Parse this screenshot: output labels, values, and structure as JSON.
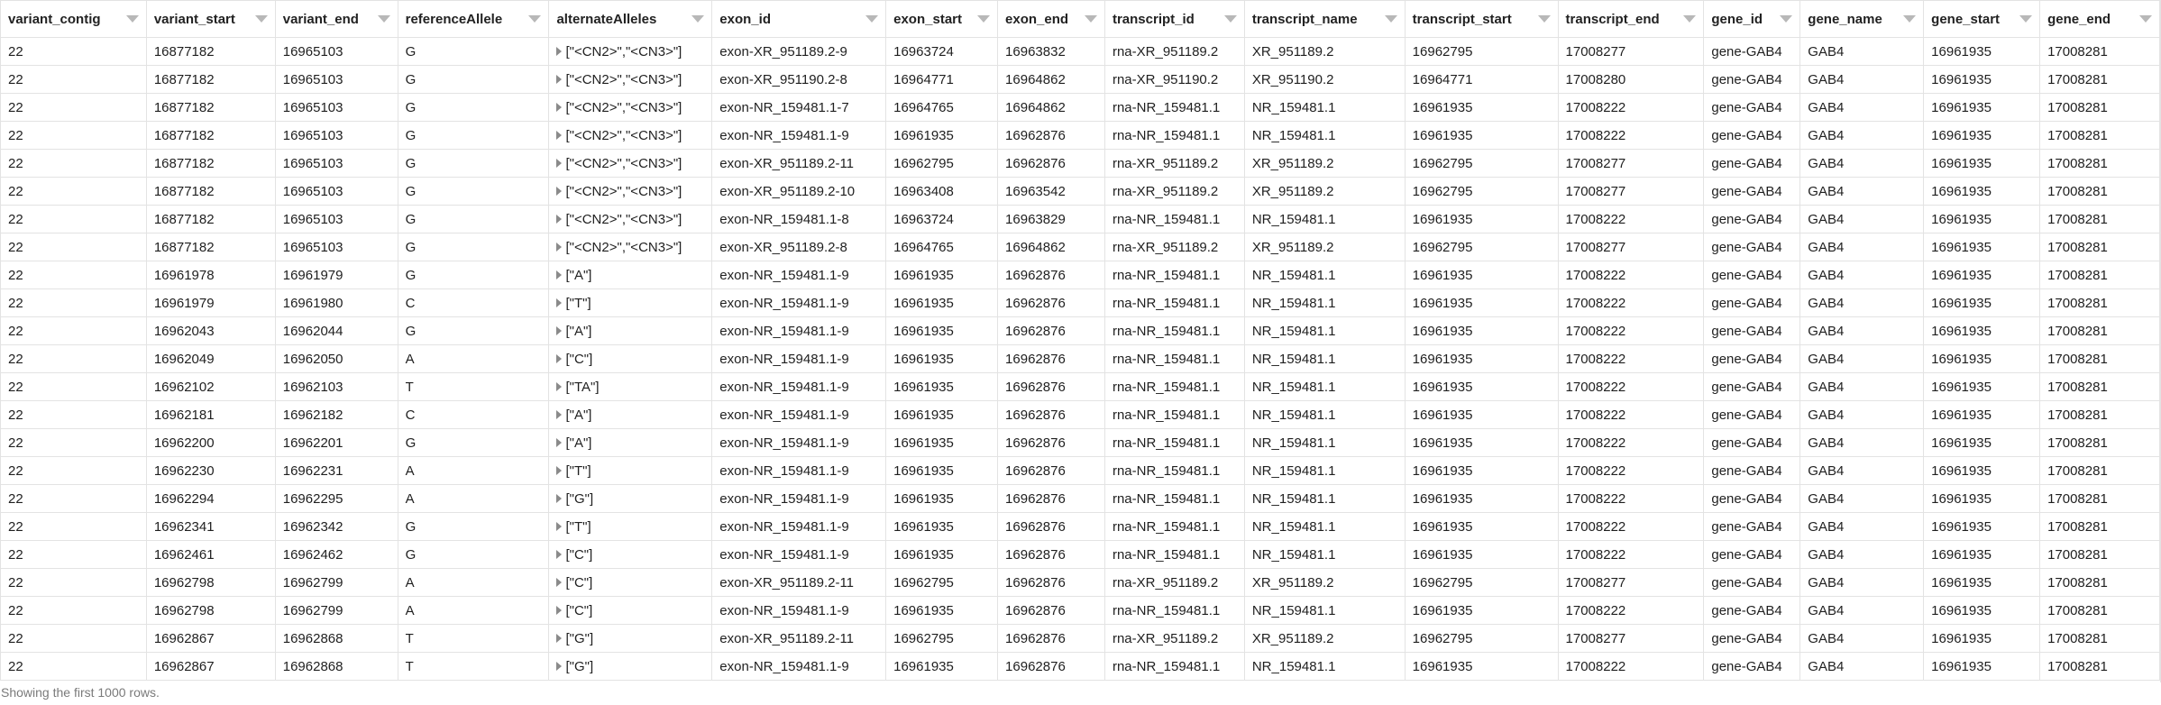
{
  "columns": [
    "variant_contig",
    "variant_start",
    "variant_end",
    "referenceAllele",
    "alternateAlleles",
    "exon_id",
    "exon_start",
    "exon_end",
    "transcript_id",
    "transcript_name",
    "transcript_start",
    "transcript_end",
    "gene_id",
    "gene_name",
    "gene_start",
    "gene_end"
  ],
  "rows": [
    [
      "22",
      "16877182",
      "16965103",
      "G",
      "[\"<CN2>\",\"<CN3>\"]",
      "exon-XR_951189.2-9",
      "16963724",
      "16963832",
      "rna-XR_951189.2",
      "XR_951189.2",
      "16962795",
      "17008277",
      "gene-GAB4",
      "GAB4",
      "16961935",
      "17008281"
    ],
    [
      "22",
      "16877182",
      "16965103",
      "G",
      "[\"<CN2>\",\"<CN3>\"]",
      "exon-XR_951190.2-8",
      "16964771",
      "16964862",
      "rna-XR_951190.2",
      "XR_951190.2",
      "16964771",
      "17008280",
      "gene-GAB4",
      "GAB4",
      "16961935",
      "17008281"
    ],
    [
      "22",
      "16877182",
      "16965103",
      "G",
      "[\"<CN2>\",\"<CN3>\"]",
      "exon-NR_159481.1-7",
      "16964765",
      "16964862",
      "rna-NR_159481.1",
      "NR_159481.1",
      "16961935",
      "17008222",
      "gene-GAB4",
      "GAB4",
      "16961935",
      "17008281"
    ],
    [
      "22",
      "16877182",
      "16965103",
      "G",
      "[\"<CN2>\",\"<CN3>\"]",
      "exon-NR_159481.1-9",
      "16961935",
      "16962876",
      "rna-NR_159481.1",
      "NR_159481.1",
      "16961935",
      "17008222",
      "gene-GAB4",
      "GAB4",
      "16961935",
      "17008281"
    ],
    [
      "22",
      "16877182",
      "16965103",
      "G",
      "[\"<CN2>\",\"<CN3>\"]",
      "exon-XR_951189.2-11",
      "16962795",
      "16962876",
      "rna-XR_951189.2",
      "XR_951189.2",
      "16962795",
      "17008277",
      "gene-GAB4",
      "GAB4",
      "16961935",
      "17008281"
    ],
    [
      "22",
      "16877182",
      "16965103",
      "G",
      "[\"<CN2>\",\"<CN3>\"]",
      "exon-XR_951189.2-10",
      "16963408",
      "16963542",
      "rna-XR_951189.2",
      "XR_951189.2",
      "16962795",
      "17008277",
      "gene-GAB4",
      "GAB4",
      "16961935",
      "17008281"
    ],
    [
      "22",
      "16877182",
      "16965103",
      "G",
      "[\"<CN2>\",\"<CN3>\"]",
      "exon-NR_159481.1-8",
      "16963724",
      "16963829",
      "rna-NR_159481.1",
      "NR_159481.1",
      "16961935",
      "17008222",
      "gene-GAB4",
      "GAB4",
      "16961935",
      "17008281"
    ],
    [
      "22",
      "16877182",
      "16965103",
      "G",
      "[\"<CN2>\",\"<CN3>\"]",
      "exon-XR_951189.2-8",
      "16964765",
      "16964862",
      "rna-XR_951189.2",
      "XR_951189.2",
      "16962795",
      "17008277",
      "gene-GAB4",
      "GAB4",
      "16961935",
      "17008281"
    ],
    [
      "22",
      "16961978",
      "16961979",
      "G",
      "[\"A\"]",
      "exon-NR_159481.1-9",
      "16961935",
      "16962876",
      "rna-NR_159481.1",
      "NR_159481.1",
      "16961935",
      "17008222",
      "gene-GAB4",
      "GAB4",
      "16961935",
      "17008281"
    ],
    [
      "22",
      "16961979",
      "16961980",
      "C",
      "[\"T\"]",
      "exon-NR_159481.1-9",
      "16961935",
      "16962876",
      "rna-NR_159481.1",
      "NR_159481.1",
      "16961935",
      "17008222",
      "gene-GAB4",
      "GAB4",
      "16961935",
      "17008281"
    ],
    [
      "22",
      "16962043",
      "16962044",
      "G",
      "[\"A\"]",
      "exon-NR_159481.1-9",
      "16961935",
      "16962876",
      "rna-NR_159481.1",
      "NR_159481.1",
      "16961935",
      "17008222",
      "gene-GAB4",
      "GAB4",
      "16961935",
      "17008281"
    ],
    [
      "22",
      "16962049",
      "16962050",
      "A",
      "[\"C\"]",
      "exon-NR_159481.1-9",
      "16961935",
      "16962876",
      "rna-NR_159481.1",
      "NR_159481.1",
      "16961935",
      "17008222",
      "gene-GAB4",
      "GAB4",
      "16961935",
      "17008281"
    ],
    [
      "22",
      "16962102",
      "16962103",
      "T",
      "[\"TA\"]",
      "exon-NR_159481.1-9",
      "16961935",
      "16962876",
      "rna-NR_159481.1",
      "NR_159481.1",
      "16961935",
      "17008222",
      "gene-GAB4",
      "GAB4",
      "16961935",
      "17008281"
    ],
    [
      "22",
      "16962181",
      "16962182",
      "C",
      "[\"A\"]",
      "exon-NR_159481.1-9",
      "16961935",
      "16962876",
      "rna-NR_159481.1",
      "NR_159481.1",
      "16961935",
      "17008222",
      "gene-GAB4",
      "GAB4",
      "16961935",
      "17008281"
    ],
    [
      "22",
      "16962200",
      "16962201",
      "G",
      "[\"A\"]",
      "exon-NR_159481.1-9",
      "16961935",
      "16962876",
      "rna-NR_159481.1",
      "NR_159481.1",
      "16961935",
      "17008222",
      "gene-GAB4",
      "GAB4",
      "16961935",
      "17008281"
    ],
    [
      "22",
      "16962230",
      "16962231",
      "A",
      "[\"T\"]",
      "exon-NR_159481.1-9",
      "16961935",
      "16962876",
      "rna-NR_159481.1",
      "NR_159481.1",
      "16961935",
      "17008222",
      "gene-GAB4",
      "GAB4",
      "16961935",
      "17008281"
    ],
    [
      "22",
      "16962294",
      "16962295",
      "A",
      "[\"G\"]",
      "exon-NR_159481.1-9",
      "16961935",
      "16962876",
      "rna-NR_159481.1",
      "NR_159481.1",
      "16961935",
      "17008222",
      "gene-GAB4",
      "GAB4",
      "16961935",
      "17008281"
    ],
    [
      "22",
      "16962341",
      "16962342",
      "G",
      "[\"T\"]",
      "exon-NR_159481.1-9",
      "16961935",
      "16962876",
      "rna-NR_159481.1",
      "NR_159481.1",
      "16961935",
      "17008222",
      "gene-GAB4",
      "GAB4",
      "16961935",
      "17008281"
    ],
    [
      "22",
      "16962461",
      "16962462",
      "G",
      "[\"C\"]",
      "exon-NR_159481.1-9",
      "16961935",
      "16962876",
      "rna-NR_159481.1",
      "NR_159481.1",
      "16961935",
      "17008222",
      "gene-GAB4",
      "GAB4",
      "16961935",
      "17008281"
    ],
    [
      "22",
      "16962798",
      "16962799",
      "A",
      "[\"C\"]",
      "exon-XR_951189.2-11",
      "16962795",
      "16962876",
      "rna-XR_951189.2",
      "XR_951189.2",
      "16962795",
      "17008277",
      "gene-GAB4",
      "GAB4",
      "16961935",
      "17008281"
    ],
    [
      "22",
      "16962798",
      "16962799",
      "A",
      "[\"C\"]",
      "exon-NR_159481.1-9",
      "16961935",
      "16962876",
      "rna-NR_159481.1",
      "NR_159481.1",
      "16961935",
      "17008222",
      "gene-GAB4",
      "GAB4",
      "16961935",
      "17008281"
    ],
    [
      "22",
      "16962867",
      "16962868",
      "T",
      "[\"G\"]",
      "exon-XR_951189.2-11",
      "16962795",
      "16962876",
      "rna-XR_951189.2",
      "XR_951189.2",
      "16962795",
      "17008277",
      "gene-GAB4",
      "GAB4",
      "16961935",
      "17008281"
    ],
    [
      "22",
      "16962867",
      "16962868",
      "T",
      "[\"G\"]",
      "exon-NR_159481.1-9",
      "16961935",
      "16962876",
      "rna-NR_159481.1",
      "NR_159481.1",
      "16961935",
      "17008222",
      "gene-GAB4",
      "GAB4",
      "16961935",
      "17008281"
    ]
  ],
  "footer": {
    "text": "Showing the first 1000 rows."
  },
  "icons": {
    "sort": "sort-caret-icon",
    "expand": "expand-triangle-icon"
  },
  "colors": {
    "border": "#e3e3e3",
    "footer_text": "#7a7a7a",
    "icon": "#b8b8b8"
  }
}
